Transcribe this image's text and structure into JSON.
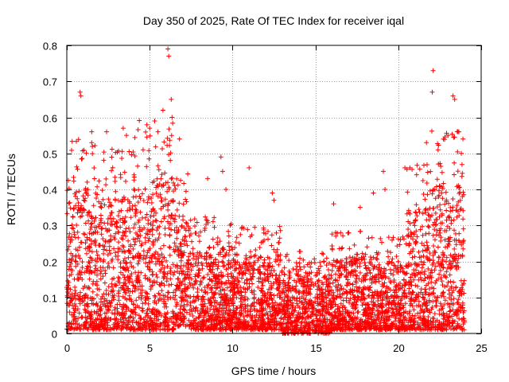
{
  "chart_data": {
    "type": "scatter",
    "title": "Day 350 of 2025, Rate Of TEC Index for receiver iqal",
    "xlabel": "GPS time / hours",
    "ylabel": "ROTI / TECUs",
    "xlim": [
      0,
      25
    ],
    "ylim": [
      0,
      0.8
    ],
    "xticks": [
      0,
      5,
      10,
      15,
      20,
      25
    ],
    "yticks": [
      0,
      0.1,
      0.2,
      0.3,
      0.4,
      0.5,
      0.6,
      0.7,
      0.8
    ],
    "grid": true,
    "marker": "+",
    "color": "#ff0000",
    "data_note": "Dense cloud of thousands of samples; density profile estimated from the figure.",
    "density_profile": [
      {
        "x0": 0.0,
        "x1": 2.0,
        "ylow": 0.01,
        "yhigh": 0.4
      },
      {
        "x0": 2.0,
        "x1": 4.0,
        "ylow": 0.01,
        "yhigh": 0.38
      },
      {
        "x0": 4.0,
        "x1": 6.5,
        "ylow": 0.01,
        "yhigh": 0.44
      },
      {
        "x0": 6.5,
        "x1": 7.5,
        "ylow": 0.02,
        "yhigh": 0.33
      },
      {
        "x0": 7.5,
        "x1": 10.0,
        "ylow": 0.01,
        "yhigh": 0.24
      },
      {
        "x0": 10.0,
        "x1": 13.0,
        "ylow": 0.01,
        "yhigh": 0.22
      },
      {
        "x0": 13.0,
        "x1": 16.0,
        "ylow": 0.0,
        "yhigh": 0.17
      },
      {
        "x0": 16.0,
        "x1": 18.0,
        "ylow": 0.01,
        "yhigh": 0.21
      },
      {
        "x0": 18.0,
        "x1": 20.5,
        "ylow": 0.01,
        "yhigh": 0.2
      },
      {
        "x0": 20.5,
        "x1": 22.0,
        "ylow": 0.01,
        "yhigh": 0.35
      },
      {
        "x0": 22.0,
        "x1": 24.0,
        "ylow": 0.01,
        "yhigh": 0.42
      }
    ],
    "outliers": [
      {
        "x": 0.8,
        "y": 0.67
      },
      {
        "x": 0.85,
        "y": 0.66
      },
      {
        "x": 1.5,
        "y": 0.56
      },
      {
        "x": 1.5,
        "y": 0.53
      },
      {
        "x": 2.4,
        "y": 0.56
      },
      {
        "x": 3.4,
        "y": 0.57
      },
      {
        "x": 3.6,
        "y": 0.55
      },
      {
        "x": 4.6,
        "y": 0.51
      },
      {
        "x": 5.0,
        "y": 0.57
      },
      {
        "x": 5.3,
        "y": 0.59
      },
      {
        "x": 5.5,
        "y": 0.56
      },
      {
        "x": 5.8,
        "y": 0.62
      },
      {
        "x": 6.1,
        "y": 0.79
      },
      {
        "x": 6.15,
        "y": 0.77
      },
      {
        "x": 6.3,
        "y": 0.65
      },
      {
        "x": 6.35,
        "y": 0.6
      },
      {
        "x": 6.8,
        "y": 0.54
      },
      {
        "x": 8.5,
        "y": 0.43
      },
      {
        "x": 9.3,
        "y": 0.49
      },
      {
        "x": 9.4,
        "y": 0.45
      },
      {
        "x": 9.6,
        "y": 0.4
      },
      {
        "x": 11.0,
        "y": 0.46
      },
      {
        "x": 12.4,
        "y": 0.39
      },
      {
        "x": 12.5,
        "y": 0.37
      },
      {
        "x": 16.1,
        "y": 0.36
      },
      {
        "x": 17.7,
        "y": 0.35
      },
      {
        "x": 18.5,
        "y": 0.39
      },
      {
        "x": 19.1,
        "y": 0.45
      },
      {
        "x": 19.2,
        "y": 0.4
      },
      {
        "x": 20.4,
        "y": 0.46
      },
      {
        "x": 21.7,
        "y": 0.53
      },
      {
        "x": 22.1,
        "y": 0.73
      },
      {
        "x": 22.05,
        "y": 0.67
      },
      {
        "x": 22.4,
        "y": 0.51
      },
      {
        "x": 23.0,
        "y": 0.55
      },
      {
        "x": 23.3,
        "y": 0.66
      },
      {
        "x": 23.4,
        "y": 0.65
      },
      {
        "x": 23.6,
        "y": 0.56
      },
      {
        "x": 23.9,
        "y": 0.54
      },
      {
        "x": 23.8,
        "y": 0.5
      }
    ]
  }
}
